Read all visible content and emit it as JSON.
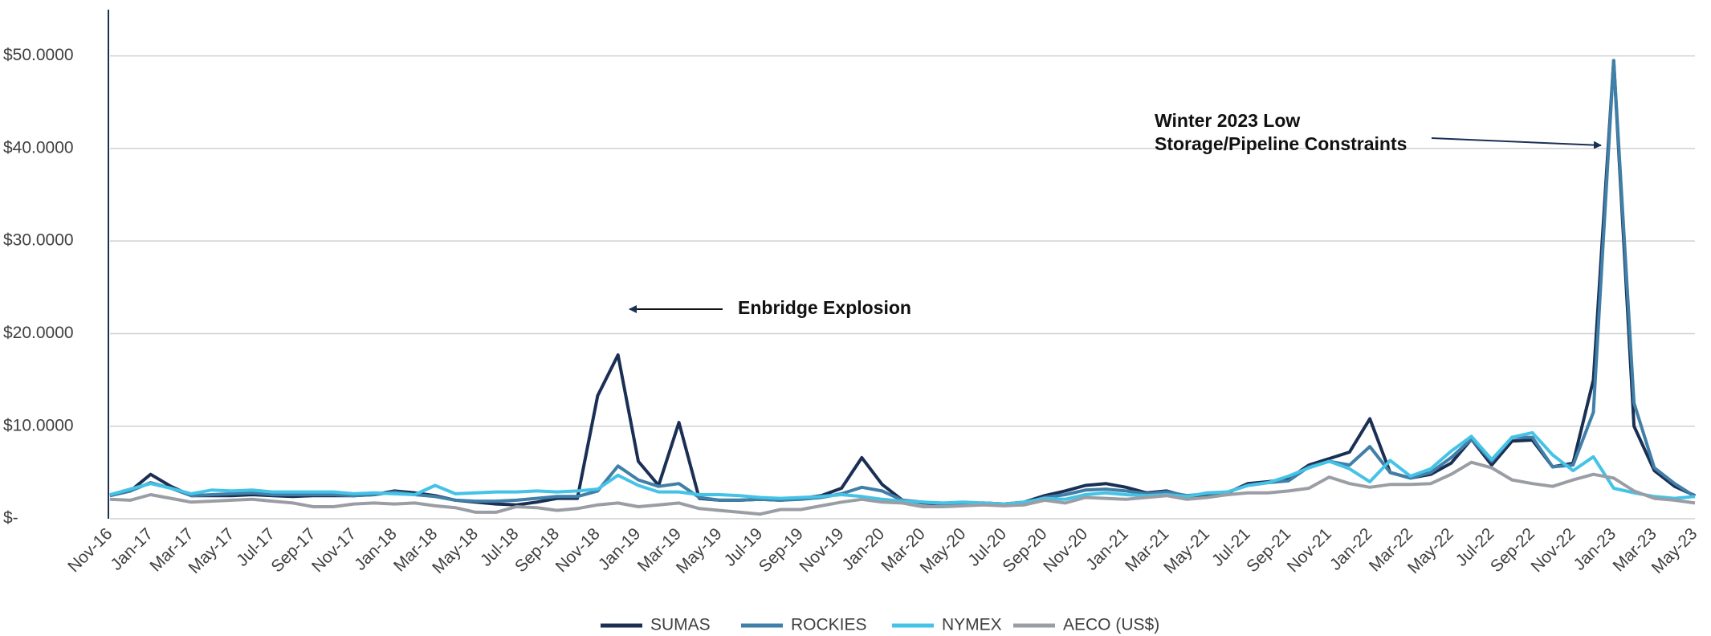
{
  "chart_data": {
    "type": "line",
    "categories": [
      "Nov-16",
      null,
      "Jan-17",
      null,
      "Mar-17",
      null,
      "May-17",
      null,
      "Jul-17",
      null,
      "Sep-17",
      null,
      "Nov-17",
      null,
      "Jan-18",
      null,
      "Mar-18",
      null,
      "May-18",
      null,
      "Jul-18",
      null,
      "Sep-18",
      null,
      "Nov-18",
      null,
      "Jan-19",
      null,
      "Mar-19",
      null,
      "May-19",
      null,
      "Jul-19",
      null,
      "Sep-19",
      null,
      "Nov-19",
      null,
      "Jan-20",
      null,
      "Mar-20",
      null,
      "May-20",
      null,
      "Jul-20",
      null,
      "Sep-20",
      null,
      "Nov-20",
      null,
      "Jan-21",
      null,
      "Mar-21",
      null,
      "May-21",
      null,
      "Jul-21",
      null,
      "Sep-21",
      null,
      "Nov-21",
      null,
      "Jan-22",
      null,
      "Mar-22",
      null,
      "May-22",
      null,
      "Jul-22",
      null,
      "Sep-22",
      null,
      "Nov-22",
      null,
      "Jan-23",
      null,
      "Mar-23",
      null,
      "May-23"
    ],
    "series": [
      {
        "name": "SUMAS",
        "color": "#1b2f55",
        "values": [
          2.5,
          3.0,
          4.8,
          3.5,
          2.5,
          2.5,
          2.5,
          2.6,
          2.5,
          2.4,
          2.5,
          2.5,
          2.5,
          2.6,
          3.0,
          2.8,
          2.5,
          2.0,
          1.8,
          1.6,
          1.5,
          1.8,
          2.2,
          2.2,
          13.3,
          17.7,
          6.2,
          3.6,
          10.4,
          2.2,
          2.0,
          2.0,
          2.1,
          2.0,
          2.2,
          2.5,
          3.3,
          6.6,
          3.7,
          2.0,
          1.7,
          1.6,
          1.6,
          1.7,
          1.6,
          1.8,
          2.5,
          3.0,
          3.6,
          3.8,
          3.4,
          2.8,
          3.0,
          2.4,
          2.6,
          2.8,
          3.8,
          4.0,
          4.3,
          5.8,
          6.5,
          7.2,
          10.8,
          5.0,
          4.4,
          4.8,
          6.0,
          8.6,
          5.8,
          8.4,
          8.5,
          5.6,
          6.0,
          15.0,
          49.5,
          10.0,
          5.2,
          3.5,
          2.5
        ]
      },
      {
        "name": "ROCKIES",
        "color": "#3f7fa8",
        "values": [
          2.5,
          3.0,
          3.9,
          3.3,
          2.5,
          2.6,
          2.7,
          2.8,
          2.6,
          2.6,
          2.6,
          2.6,
          2.5,
          2.6,
          2.9,
          2.6,
          2.4,
          2.0,
          1.9,
          1.9,
          2.0,
          2.2,
          2.4,
          2.4,
          3.0,
          5.7,
          4.2,
          3.5,
          3.8,
          2.3,
          2.0,
          2.0,
          2.1,
          2.0,
          2.1,
          2.3,
          2.7,
          3.4,
          3.0,
          2.0,
          1.8,
          1.6,
          1.6,
          1.7,
          1.6,
          1.7,
          2.3,
          2.6,
          3.1,
          3.2,
          3.0,
          2.7,
          2.9,
          2.5,
          2.7,
          2.9,
          3.6,
          3.9,
          4.1,
          5.6,
          6.2,
          5.8,
          7.8,
          5.0,
          4.4,
          5.0,
          6.6,
          8.6,
          6.2,
          8.8,
          8.8,
          5.6,
          5.8,
          11.5,
          49.5,
          12.5,
          5.5,
          3.8,
          2.4
        ]
      },
      {
        "name": "NYMEX",
        "color": "#45c3e6",
        "values": [
          2.6,
          3.2,
          3.8,
          3.3,
          2.7,
          3.1,
          3.0,
          3.1,
          2.9,
          2.9,
          2.9,
          2.9,
          2.7,
          2.8,
          2.7,
          2.6,
          3.6,
          2.7,
          2.8,
          2.9,
          2.9,
          3.0,
          2.9,
          3.0,
          3.2,
          4.7,
          3.6,
          2.9,
          2.9,
          2.6,
          2.6,
          2.5,
          2.3,
          2.2,
          2.3,
          2.4,
          2.6,
          2.4,
          2.1,
          1.9,
          1.8,
          1.7,
          1.8,
          1.7,
          1.6,
          1.8,
          2.2,
          2.1,
          2.6,
          2.8,
          2.6,
          2.5,
          2.6,
          2.4,
          2.8,
          2.9,
          3.6,
          3.9,
          4.6,
          5.5,
          6.2,
          5.4,
          4.0,
          6.3,
          4.6,
          5.4,
          7.3,
          8.9,
          6.4,
          8.8,
          9.3,
          6.9,
          5.2,
          6.7,
          3.3,
          2.8,
          2.4,
          2.2,
          2.4
        ]
      },
      {
        "name": "AECO (US$)",
        "color": "#9a9ea4",
        "values": [
          2.1,
          2.0,
          2.6,
          2.2,
          1.8,
          1.9,
          2.0,
          2.1,
          1.9,
          1.7,
          1.3,
          1.3,
          1.6,
          1.7,
          1.6,
          1.7,
          1.4,
          1.2,
          0.7,
          0.7,
          1.3,
          1.2,
          0.9,
          1.1,
          1.5,
          1.7,
          1.3,
          1.5,
          1.7,
          1.1,
          0.9,
          0.7,
          0.5,
          1.0,
          1.0,
          1.4,
          1.8,
          2.1,
          1.8,
          1.7,
          1.3,
          1.3,
          1.4,
          1.5,
          1.4,
          1.5,
          2.0,
          1.7,
          2.3,
          2.2,
          2.1,
          2.3,
          2.5,
          2.1,
          2.3,
          2.6,
          2.8,
          2.8,
          3.0,
          3.3,
          4.5,
          3.8,
          3.4,
          3.7,
          3.7,
          3.8,
          4.8,
          6.1,
          5.5,
          4.2,
          3.8,
          3.5,
          4.2,
          4.8,
          4.4,
          3.0,
          2.2,
          2.0,
          1.7
        ]
      }
    ],
    "ylim": [
      0,
      55
    ],
    "yticks": [
      {
        "value": 0,
        "label": "$-"
      },
      {
        "value": 10,
        "label": "$10.0000"
      },
      {
        "value": 20,
        "label": "$20.0000"
      },
      {
        "value": 30,
        "label": "$30.0000"
      },
      {
        "value": 40,
        "label": "$40.0000"
      },
      {
        "value": 50,
        "label": "$50.0000"
      }
    ],
    "grid": true,
    "legend": "bottom",
    "annotations": [
      {
        "text": [
          "Enbridge Explosion"
        ]
      },
      {
        "text": [
          "Winter 2023 Low",
          "Storage/Pipeline Constraints"
        ]
      }
    ]
  }
}
